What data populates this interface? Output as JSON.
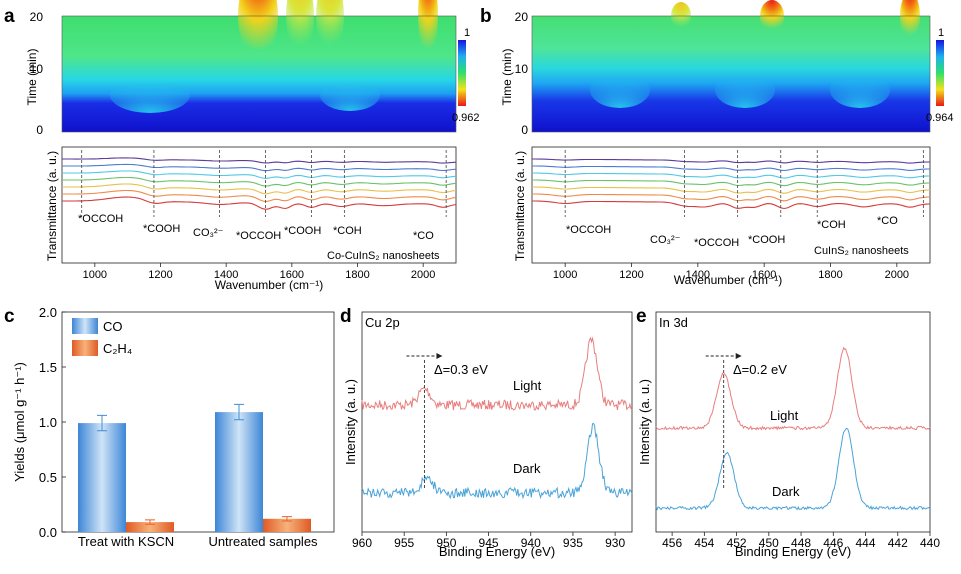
{
  "panels": {
    "a": {
      "letter": "a",
      "heatmap": {
        "y_label": "Time (min)",
        "y_ticks": [
          "20",
          "10",
          "0"
        ],
        "scale_max": "1",
        "scale_min": "0.962"
      },
      "ftir": {
        "y_label": "Transmittance (a. u.)",
        "x_label": "Wavenumber (cm⁻¹)",
        "x_ticks": [
          "1000",
          "1200",
          "1400",
          "1600",
          "1800",
          "2000"
        ],
        "sample": "Co-CuInS₂ nanosheets",
        "peaks": [
          "*OCCOH",
          "*COOH",
          "CO₃²⁻",
          "*OCCOH",
          "*COOH",
          "*COH",
          "*CO"
        ]
      }
    },
    "b": {
      "letter": "b",
      "heatmap": {
        "y_label": "Time (min)",
        "y_ticks": [
          "20",
          "10",
          "0"
        ],
        "scale_max": "1",
        "scale_min": "0.964"
      },
      "ftir": {
        "y_label": "Transmittance (a. u.)",
        "x_label": "Wavenumber (cm⁻¹)",
        "x_ticks": [
          "1000",
          "1200",
          "1400",
          "1600",
          "1800",
          "2000"
        ],
        "sample": "CuInS₂ nanosheets",
        "peaks": [
          "*OCCOH",
          "CO₃²⁻",
          "*OCCOH",
          "*COOH",
          "*COH",
          "*CO"
        ]
      }
    },
    "c": {
      "letter": "c"
    },
    "d": {
      "letter": "d",
      "title": "Cu 2p",
      "shift": "Δ=0.3 eV",
      "light": "Light",
      "dark": "Dark",
      "x_label": "Binding Energy (eV)",
      "y_label": "Intensity (a. u.)",
      "x_ticks": [
        "960",
        "955",
        "950",
        "945",
        "940",
        "935",
        "930"
      ]
    },
    "e": {
      "letter": "e",
      "title": "In 3d",
      "shift": "Δ=0.2 eV",
      "light": "Light",
      "dark": "Dark",
      "x_label": "Binding Energy (eV)",
      "y_label": "Intensity (a. u.)",
      "x_ticks": [
        "456",
        "454",
        "452",
        "450",
        "448",
        "446",
        "444",
        "442",
        "440"
      ]
    }
  },
  "chart_data": [
    {
      "type": "bar",
      "panel": "c",
      "ylabel": "Yields (μmol g⁻¹ h⁻¹)",
      "ylim": [
        0,
        2.0
      ],
      "yticks": [
        "0.0",
        "0.5",
        "1.0",
        "1.5",
        "2.0"
      ],
      "categories": [
        "Treat with KSCN",
        "Untreated samples"
      ],
      "series": [
        {
          "name": "CO",
          "values": [
            0.99,
            1.09
          ],
          "errors": [
            0.07,
            0.07
          ],
          "color": "#3f8fd8"
        },
        {
          "name": "C₂H₄",
          "values": [
            0.09,
            0.12
          ],
          "errors": [
            0.02,
            0.02
          ],
          "color": "#e8622a"
        }
      ]
    },
    {
      "type": "line",
      "panel": "d",
      "xlim": [
        960,
        928
      ],
      "x_ticks": [
        960,
        955,
        950,
        945,
        940,
        935,
        930
      ],
      "series": [
        {
          "name": "Light",
          "color": "#e87e7e",
          "peaks": [
            {
              "x": 952.6,
              "height": 0.25
            },
            {
              "x": 932.8,
              "height": 1.0
            }
          ]
        },
        {
          "name": "Dark",
          "color": "#4ba3d8",
          "peaks": [
            {
              "x": 952.3,
              "height": 0.25
            },
            {
              "x": 932.6,
              "height": 1.0
            }
          ]
        }
      ],
      "annotation": {
        "from": 952.6,
        "to": 952.3,
        "text": "Δ=0.3 eV"
      }
    },
    {
      "type": "line",
      "panel": "e",
      "xlim": [
        457,
        440
      ],
      "x_ticks": [
        456,
        454,
        452,
        450,
        448,
        446,
        444,
        442,
        440
      ],
      "series": [
        {
          "name": "Light",
          "color": "#e87e7e",
          "peaks": [
            {
              "x": 452.8,
              "height": 0.68
            },
            {
              "x": 445.3,
              "height": 1.0
            }
          ]
        },
        {
          "name": "Dark",
          "color": "#4ba3d8",
          "peaks": [
            {
              "x": 452.6,
              "height": 0.68
            },
            {
              "x": 445.2,
              "height": 1.0
            }
          ]
        }
      ],
      "annotation": {
        "from": 452.8,
        "to": 452.6,
        "text": "Δ=0.2 eV"
      }
    }
  ]
}
